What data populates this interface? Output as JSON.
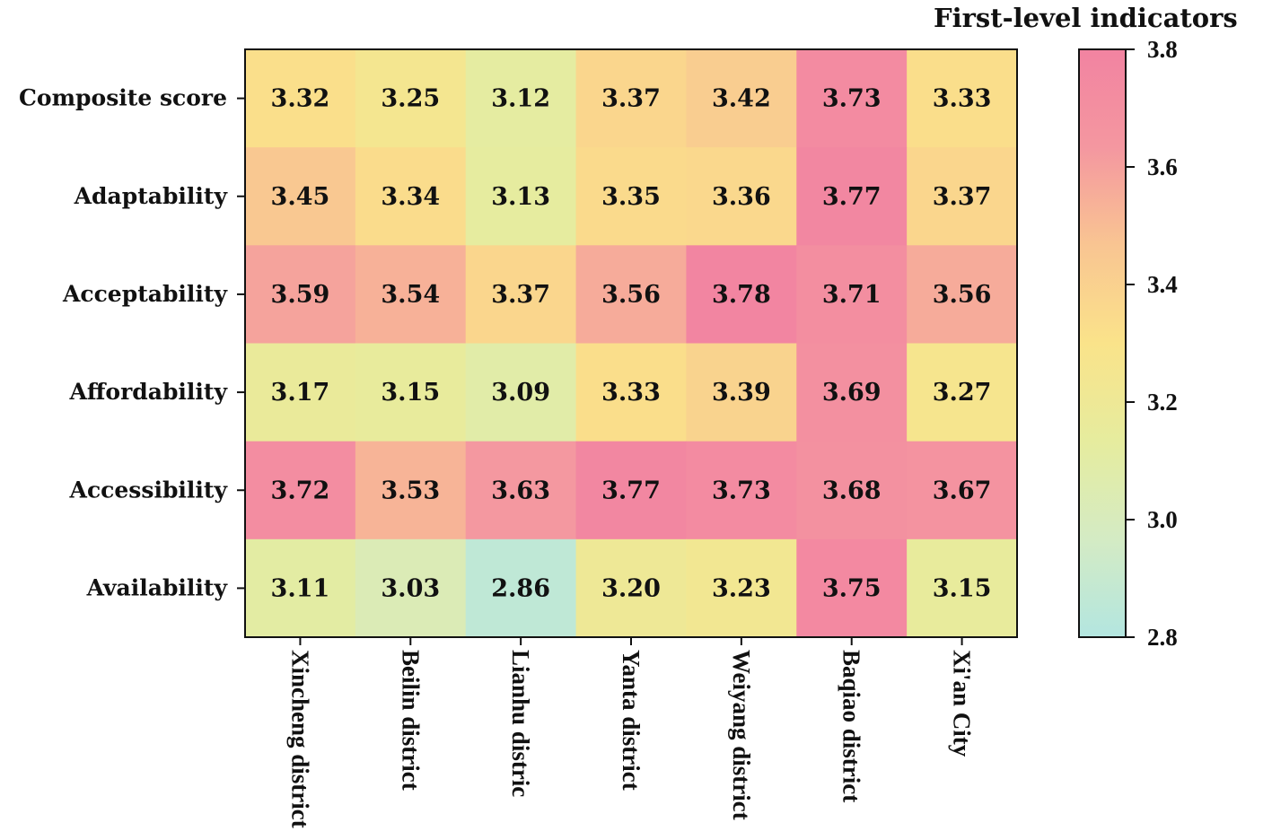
{
  "chart_data": {
    "type": "heatmap",
    "title": "",
    "rows": [
      "Composite score",
      "Adaptability",
      "Acceptability",
      "Affordability",
      "Accessibility",
      "Availability"
    ],
    "columns": [
      "Xincheng district",
      "Beilin district",
      "Lianhu distric",
      "Yanta district",
      "Weiyang district",
      "Baqiao district",
      "Xi'an City"
    ],
    "values": [
      [
        "3.32",
        "3.25",
        "3.12",
        "3.37",
        "3.42",
        "3.73",
        "3.33"
      ],
      [
        "3.45",
        "3.34",
        "3.13",
        "3.35",
        "3.36",
        "3.77",
        "3.37"
      ],
      [
        "3.59",
        "3.54",
        "3.37",
        "3.56",
        "3.78",
        "3.71",
        "3.56"
      ],
      [
        "3.17",
        "3.15",
        "3.09",
        "3.33",
        "3.39",
        "3.69",
        "3.27"
      ],
      [
        "3.72",
        "3.53",
        "3.63",
        "3.77",
        "3.73",
        "3.68",
        "3.67"
      ],
      [
        "3.11",
        "3.03",
        "2.86",
        "3.20",
        "3.23",
        "3.75",
        "3.15"
      ]
    ],
    "colorbar": {
      "title": "First-level indicators",
      "min": 2.8,
      "max": 3.8,
      "ticks": [
        "3.8",
        "3.6",
        "3.4",
        "3.2",
        "3.0",
        "2.8"
      ],
      "colors": [
        "#b3e6e0",
        "#d4ebc4",
        "#e6ec9e",
        "#fae38a",
        "#f9c592",
        "#f497a0",
        "#f283a1"
      ]
    }
  }
}
